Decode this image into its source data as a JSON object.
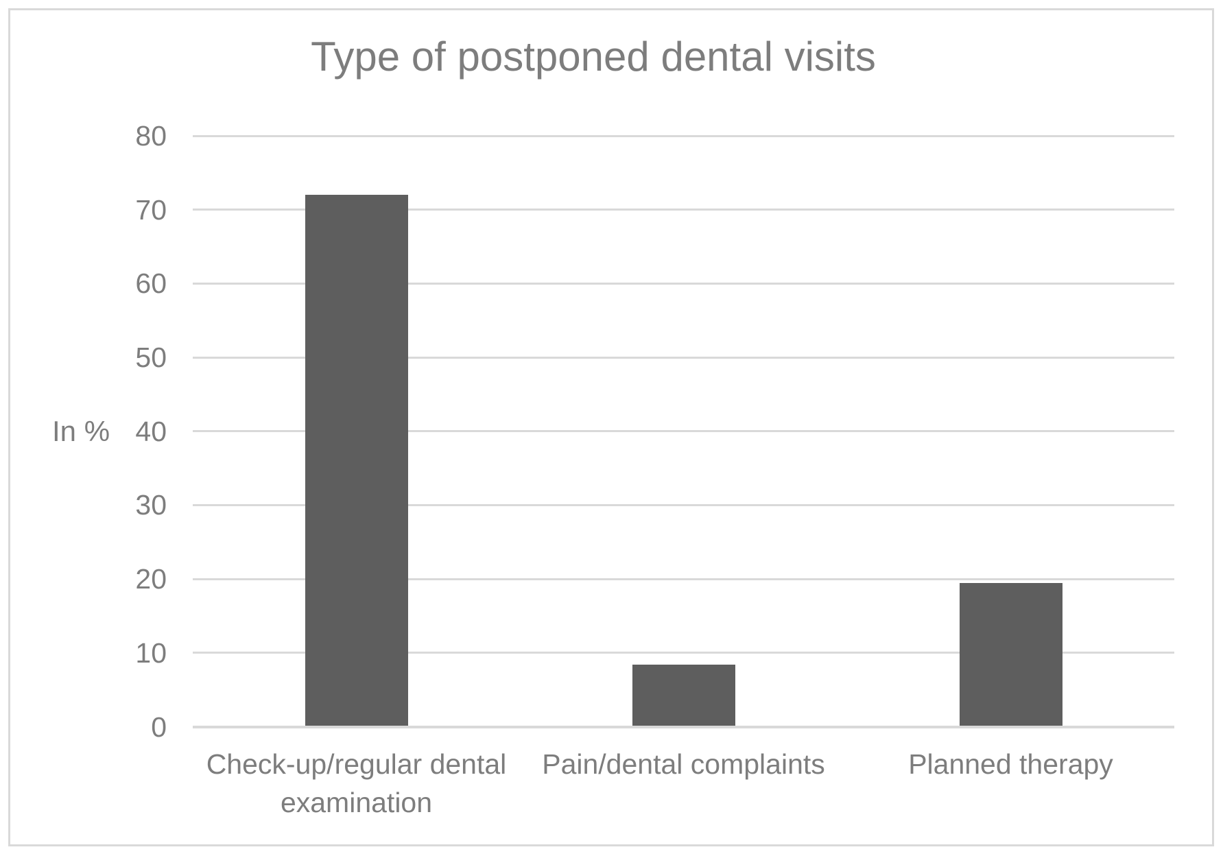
{
  "chart_data": {
    "type": "bar",
    "title": "Type of postponed dental visits",
    "ylabel": "In %",
    "xlabel": "",
    "categories": [
      "Check-up/regular dental examination",
      "Pain/dental complaints",
      "Planned therapy"
    ],
    "values": [
      72,
      8.4,
      19.5
    ],
    "ylim": [
      0,
      80
    ],
    "yticks": [
      0,
      10,
      20,
      30,
      40,
      50,
      60,
      70,
      80
    ],
    "grid": true,
    "legend": "none",
    "bar_color": "#5e5e5e",
    "grid_color": "#d9d9d9",
    "text_color": "#7d7d7d",
    "frame_color": "#d9d9d9"
  }
}
